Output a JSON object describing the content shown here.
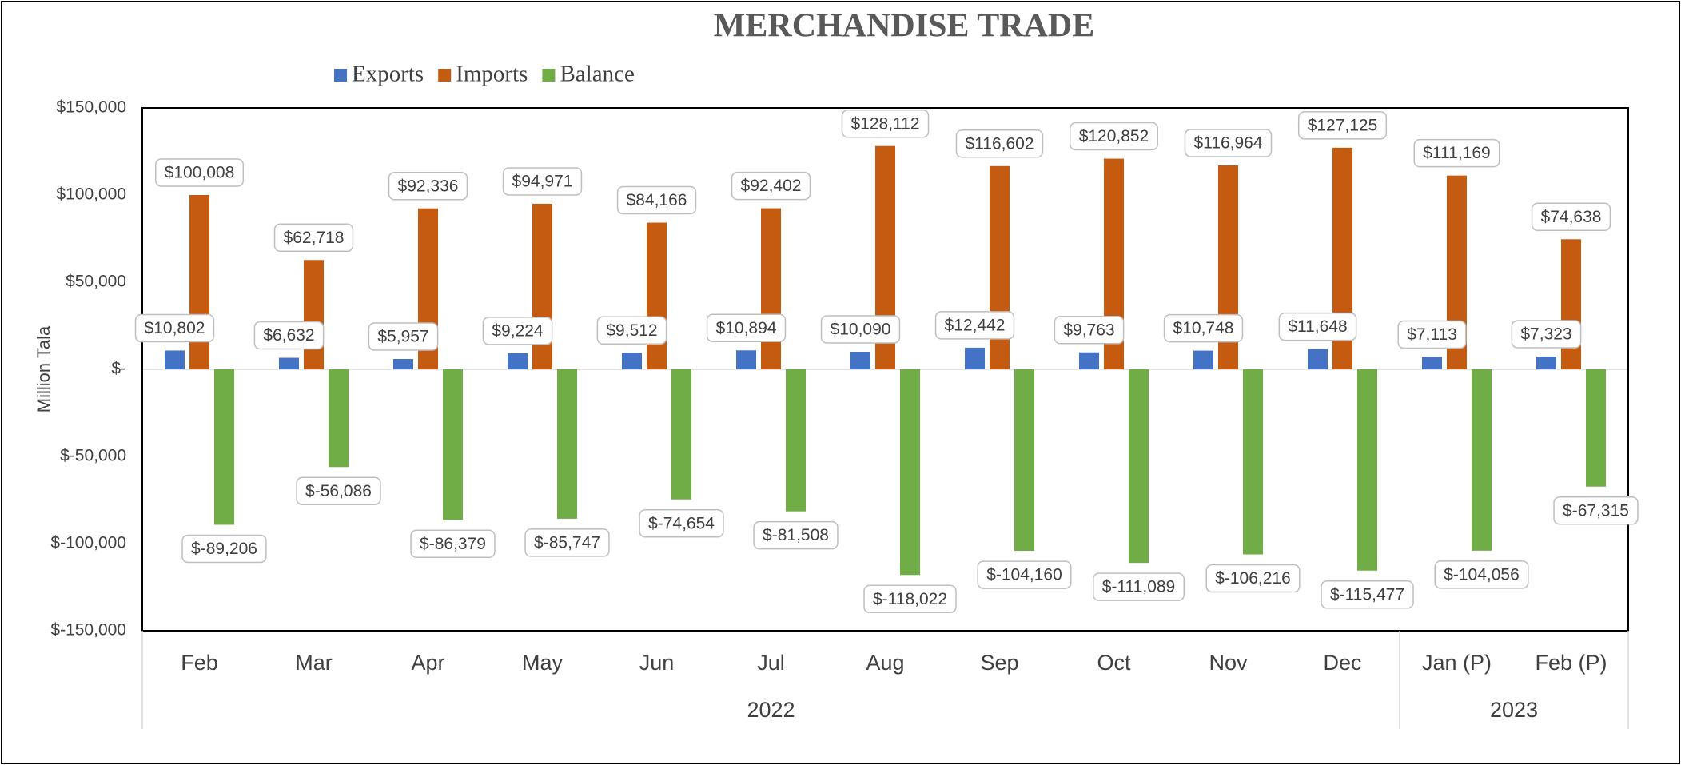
{
  "chart_data": {
    "type": "bar",
    "title": "MERCHANDISE TRADE",
    "y_label": "Million Tala",
    "categories": [
      "Feb",
      "Mar",
      "Apr",
      "May",
      "Jun",
      "Jul",
      "Aug",
      "Sep",
      "Oct",
      "Nov",
      "Dec",
      "Jan (P)",
      "Feb (P)"
    ],
    "category_groups": [
      {
        "label": "2022",
        "count": 11
      },
      {
        "label": "2023",
        "count": 2
      }
    ],
    "series": [
      {
        "name": "Exports",
        "color": "#4472c4",
        "values": [
          10802,
          6632,
          5957,
          9224,
          9512,
          10894,
          10090,
          12442,
          9763,
          10748,
          11648,
          7113,
          7323
        ],
        "value_labels": [
          "$10,802",
          "$6,632",
          "$5,957",
          "$9,224",
          "$9,512",
          "$10,894",
          "$10,090",
          "$12,442",
          "$9,763",
          "$10,748",
          "$11,648",
          "$7,113",
          "$7,323"
        ]
      },
      {
        "name": "Imports",
        "color": "#c55a11",
        "values": [
          100008,
          62718,
          92336,
          94971,
          84166,
          92402,
          128112,
          116602,
          120852,
          116964,
          127125,
          111169,
          74638
        ],
        "value_labels": [
          "$100,008",
          "$62,718",
          "$92,336",
          "$94,971",
          "$84,166",
          "$92,402",
          "$128,112",
          "$116,602",
          "$120,852",
          "$116,964",
          "$127,125",
          "$111,169",
          "$74,638"
        ]
      },
      {
        "name": "Balance",
        "color": "#70ad47",
        "values": [
          -89206,
          -56086,
          -86379,
          -85747,
          -74654,
          -81508,
          -118022,
          -104160,
          -111089,
          -106216,
          -115477,
          -104056,
          -67315
        ],
        "value_labels": [
          "$-89,206",
          "$-56,086",
          "$-86,379",
          "$-85,747",
          "$-74,654",
          "$-81,508",
          "$-118,022",
          "$-104,160",
          "$-111,089",
          "$-106,216",
          "$-115,477",
          "$-104,056",
          "$-67,315"
        ]
      }
    ],
    "ylim": [
      -150000,
      150000
    ],
    "yticks": [
      {
        "value": -150000,
        "label": "$-150,000"
      },
      {
        "value": -100000,
        "label": "$-100,000"
      },
      {
        "value": -50000,
        "label": "$-50,000"
      },
      {
        "value": 0,
        "label": "$-"
      },
      {
        "value": 50000,
        "label": "$50,000"
      },
      {
        "value": 100000,
        "label": "$100,000"
      },
      {
        "value": 150000,
        "label": "$150,000"
      }
    ],
    "legend": "top-left"
  }
}
